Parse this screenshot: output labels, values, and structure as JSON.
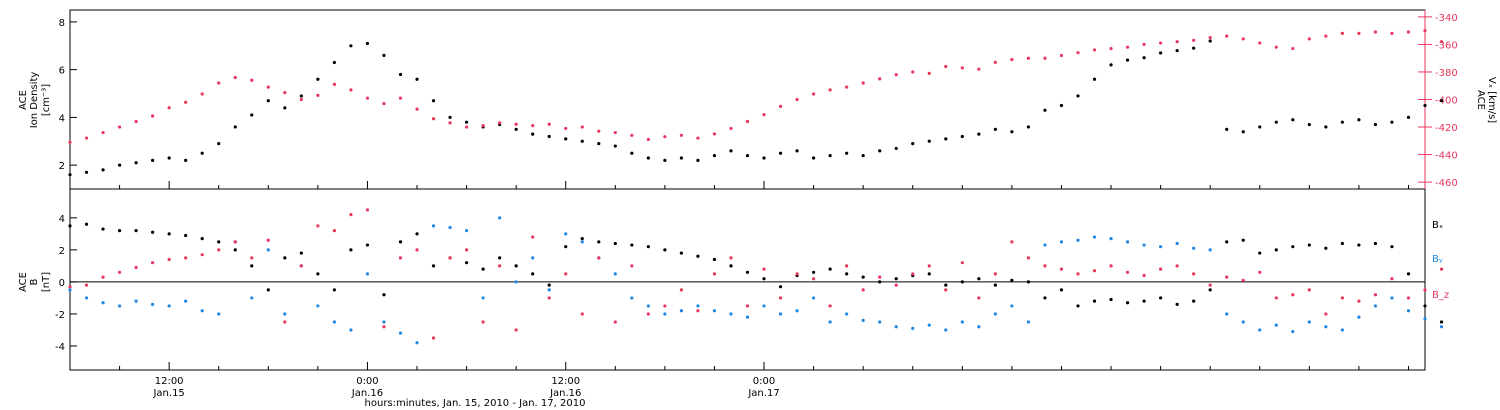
{
  "chart_data": [
    {
      "type": "scatter",
      "panel": "top",
      "ylabel_left": [
        "ACE",
        "Ion Density",
        "[cm⁻³]"
      ],
      "ylabel_right": [
        "ACE",
        "Vₓ [km/s]"
      ],
      "ylim_left": [
        1,
        8.5
      ],
      "yticks_left": [
        2,
        4,
        6,
        8
      ],
      "ylim_right": [
        -465,
        -335
      ],
      "yticks_right": [
        -460,
        -440,
        -420,
        -400,
        -380,
        -360,
        -340
      ],
      "series": [
        {
          "color": "#000000",
          "axis": "left",
          "x": [
            0,
            1,
            2,
            3,
            4,
            5,
            6,
            7,
            8,
            9,
            10,
            11,
            12,
            13,
            14,
            15,
            16,
            17,
            18,
            19,
            20,
            21,
            22,
            23,
            24,
            25,
            26,
            27,
            28,
            29,
            30,
            31,
            32,
            33,
            34,
            35,
            36,
            37,
            38,
            39,
            40,
            41,
            42,
            43,
            44,
            45,
            46,
            47,
            48,
            49,
            50,
            51,
            52,
            53,
            54,
            55,
            56,
            57,
            58,
            59,
            60,
            61,
            62,
            63,
            64,
            65,
            66,
            67,
            68,
            69,
            70,
            71,
            72,
            73,
            74,
            75,
            76,
            77,
            78,
            79,
            80,
            81,
            82,
            83
          ],
          "y": [
            1.6,
            1.7,
            1.8,
            2.0,
            2.1,
            2.2,
            2.3,
            2.2,
            2.5,
            2.9,
            3.6,
            4.1,
            4.7,
            4.4,
            4.9,
            5.6,
            6.3,
            7.0,
            7.1,
            6.6,
            5.8,
            5.6,
            4.7,
            4.0,
            3.8,
            3.6,
            3.7,
            3.5,
            3.3,
            3.2,
            3.1,
            3.0,
            2.9,
            2.8,
            2.5,
            2.3,
            2.2,
            2.3,
            2.2,
            2.4,
            2.6,
            2.4,
            2.3,
            2.5,
            2.6,
            2.3,
            2.4,
            2.5,
            2.4,
            2.6,
            2.7,
            2.9,
            3.0,
            3.1,
            3.2,
            3.3,
            3.5,
            3.4,
            3.6,
            4.3,
            4.5,
            4.9,
            5.6,
            6.2,
            6.4,
            6.5,
            6.7,
            6.8,
            6.9,
            7.2,
            3.5,
            3.4,
            3.6,
            3.8,
            3.9,
            3.7,
            3.6,
            3.8,
            3.9,
            3.7,
            3.8,
            4.0,
            4.5,
            4.7
          ]
        },
        {
          "color": "#e8365e",
          "axis": "right",
          "x": [
            0,
            1,
            2,
            3,
            4,
            5,
            6,
            7,
            8,
            9,
            10,
            11,
            12,
            13,
            14,
            15,
            16,
            17,
            18,
            19,
            20,
            21,
            22,
            23,
            24,
            25,
            26,
            27,
            28,
            29,
            30,
            31,
            32,
            33,
            34,
            35,
            36,
            37,
            38,
            39,
            40,
            41,
            42,
            43,
            44,
            45,
            46,
            47,
            48,
            49,
            50,
            51,
            52,
            53,
            54,
            55,
            56,
            57,
            58,
            59,
            60,
            61,
            62,
            63,
            64,
            65,
            66,
            67,
            68,
            69,
            70,
            71,
            72,
            73,
            74,
            75,
            76,
            77,
            78,
            79,
            80,
            81,
            82,
            83
          ],
          "y": [
            -431,
            -428,
            -424,
            -420,
            -416,
            -412,
            -406,
            -402,
            -396,
            -388,
            -384,
            -386,
            -391,
            -395,
            -400,
            -397,
            -389,
            -393,
            -399,
            -403,
            -399,
            -407,
            -414,
            -417,
            -420,
            -419,
            -417,
            -418,
            -419,
            -418,
            -421,
            -420,
            -423,
            -424,
            -426,
            -429,
            -427,
            -426,
            -428,
            -425,
            -421,
            -416,
            -411,
            -405,
            -400,
            -396,
            -393,
            -391,
            -388,
            -385,
            -382,
            -380,
            -381,
            -376,
            -377,
            -378,
            -373,
            -371,
            -370,
            -370,
            -368,
            -366,
            -364,
            -363,
            -362,
            -360,
            -359,
            -358,
            -357,
            -355,
            -354,
            -356,
            -359,
            -362,
            -363,
            -356,
            -354,
            -352,
            -352,
            -351,
            -352,
            -351,
            -350,
            -358
          ]
        }
      ]
    },
    {
      "type": "scatter",
      "panel": "bottom",
      "ylabel_left": [
        "ACE",
        "B",
        "[nT]"
      ],
      "ylim": [
        -5.5,
        5.8
      ],
      "yticks": [
        -4,
        -2,
        0,
        2,
        4
      ],
      "legend_position": "right",
      "series": [
        {
          "name": "Bₓ",
          "color": "#000000",
          "x": [
            0,
            1,
            2,
            3,
            4,
            5,
            6,
            7,
            8,
            9,
            10,
            11,
            12,
            13,
            14,
            15,
            16,
            17,
            18,
            19,
            20,
            21,
            22,
            23,
            24,
            25,
            26,
            27,
            28,
            29,
            30,
            31,
            32,
            33,
            34,
            35,
            36,
            37,
            38,
            39,
            40,
            41,
            42,
            43,
            44,
            45,
            46,
            47,
            48,
            49,
            50,
            51,
            52,
            53,
            54,
            55,
            56,
            57,
            58,
            59,
            60,
            61,
            62,
            63,
            64,
            65,
            66,
            67,
            68,
            69,
            70,
            71,
            72,
            73,
            74,
            75,
            76,
            77,
            78,
            79,
            80,
            81,
            82,
            83
          ],
          "y": [
            3.5,
            3.6,
            3.3,
            3.2,
            3.2,
            3.1,
            3.0,
            2.9,
            2.7,
            2.5,
            2.0,
            1.0,
            -0.5,
            1.5,
            1.8,
            0.5,
            -0.5,
            2.0,
            2.3,
            -0.8,
            2.5,
            3.0,
            1.0,
            1.5,
            1.2,
            0.8,
            1.5,
            1.0,
            0.5,
            -0.2,
            2.2,
            2.7,
            2.5,
            2.4,
            2.3,
            2.2,
            2.0,
            1.8,
            1.6,
            1.4,
            1.0,
            0.6,
            0.2,
            -0.3,
            0.4,
            0.6,
            0.8,
            0.5,
            0.3,
            0.0,
            0.2,
            0.4,
            0.5,
            -0.2,
            0.0,
            0.2,
            -0.2,
            0.1,
            0.0,
            -1.0,
            -0.5,
            -1.5,
            -1.2,
            -1.1,
            -1.3,
            -1.2,
            -1.0,
            -1.4,
            -1.2,
            -0.5,
            2.5,
            2.6,
            1.8,
            2.0,
            2.2,
            2.3,
            2.1,
            2.4,
            2.3,
            2.4,
            2.2,
            0.5,
            -1.5,
            -2.5
          ]
        },
        {
          "name": "Bᵧ",
          "color": "#1e88e5",
          "x": [
            0,
            1,
            2,
            3,
            4,
            5,
            6,
            7,
            8,
            9,
            10,
            11,
            12,
            13,
            14,
            15,
            16,
            17,
            18,
            19,
            20,
            21,
            22,
            23,
            24,
            25,
            26,
            27,
            28,
            29,
            30,
            31,
            32,
            33,
            34,
            35,
            36,
            37,
            38,
            39,
            40,
            41,
            42,
            43,
            44,
            45,
            46,
            47,
            48,
            49,
            50,
            51,
            52,
            53,
            54,
            55,
            56,
            57,
            58,
            59,
            60,
            61,
            62,
            63,
            64,
            65,
            66,
            67,
            68,
            69,
            70,
            71,
            72,
            73,
            74,
            75,
            76,
            77,
            78,
            79,
            80,
            81,
            82,
            83
          ],
          "y": [
            -0.5,
            -1.0,
            -1.3,
            -1.5,
            -1.2,
            -1.4,
            -1.5,
            -1.2,
            -1.8,
            -2.0,
            2.5,
            -1.0,
            2.0,
            -2.0,
            1.0,
            -1.5,
            -2.5,
            -3.0,
            0.5,
            -2.5,
            -3.2,
            -3.8,
            3.5,
            3.4,
            3.2,
            -1.0,
            4.0,
            0.0,
            1.5,
            -0.5,
            3.0,
            2.5,
            1.5,
            0.5,
            -1.0,
            -1.5,
            -2.0,
            -1.8,
            -1.5,
            -1.8,
            -2.0,
            -2.2,
            -1.5,
            -2.0,
            -1.8,
            -1.0,
            -2.5,
            -2.0,
            -2.4,
            -2.5,
            -2.8,
            -2.9,
            -2.7,
            -3.0,
            -2.5,
            -2.8,
            -2.0,
            -1.5,
            -2.5,
            2.3,
            2.5,
            2.6,
            2.8,
            2.7,
            2.5,
            2.3,
            2.2,
            2.4,
            2.1,
            2.0,
            -2.0,
            -2.5,
            -3.0,
            -2.7,
            -3.1,
            -2.5,
            -2.8,
            -3.0,
            -2.2,
            -1.5,
            -1.0,
            -1.8,
            -2.3,
            -2.8
          ]
        },
        {
          "name": "B_z",
          "color": "#e8365e",
          "x": [
            0,
            1,
            2,
            3,
            4,
            5,
            6,
            7,
            8,
            9,
            10,
            11,
            12,
            13,
            14,
            15,
            16,
            17,
            18,
            19,
            20,
            21,
            22,
            23,
            24,
            25,
            26,
            27,
            28,
            29,
            30,
            31,
            32,
            33,
            34,
            35,
            36,
            37,
            38,
            39,
            40,
            41,
            42,
            43,
            44,
            45,
            46,
            47,
            48,
            49,
            50,
            51,
            52,
            53,
            54,
            55,
            56,
            57,
            58,
            59,
            60,
            61,
            62,
            63,
            64,
            65,
            66,
            67,
            68,
            69,
            70,
            71,
            72,
            73,
            74,
            75,
            76,
            77,
            78,
            79,
            80,
            81,
            82,
            83
          ],
          "y": [
            -0.3,
            -0.2,
            0.3,
            0.6,
            0.9,
            1.2,
            1.4,
            1.5,
            1.7,
            2.0,
            2.5,
            1.5,
            2.6,
            -2.5,
            1.0,
            3.5,
            3.2,
            4.2,
            4.5,
            -2.8,
            1.5,
            2.0,
            -3.5,
            1.5,
            2.0,
            -2.5,
            1.0,
            -3.0,
            2.8,
            -1.0,
            0.5,
            -2.0,
            1.5,
            -2.5,
            1.0,
            -2.0,
            -1.5,
            -0.5,
            -1.8,
            0.5,
            1.5,
            -1.5,
            0.8,
            -1.0,
            0.5,
            0.2,
            -1.5,
            1.0,
            -0.5,
            0.3,
            -0.2,
            0.5,
            1.0,
            -0.5,
            1.2,
            -1.0,
            0.5,
            2.5,
            1.5,
            1.0,
            0.8,
            0.5,
            0.7,
            1.0,
            0.6,
            0.4,
            0.8,
            1.0,
            0.5,
            -0.2,
            0.3,
            0.1,
            0.6,
            -1.0,
            -0.8,
            -0.5,
            -2.0,
            -1.0,
            -1.2,
            -0.8,
            0.2,
            -1.0,
            -0.5,
            0.8
          ]
        }
      ]
    }
  ],
  "xaxis": {
    "label": "hours:minutes, Jan. 15, 2010 - Jan. 17, 2010",
    "x_units": "hours since 06:00 Jan. 15, 2010",
    "xlim": [
      0,
      82
    ],
    "ticks": [
      {
        "x": 6,
        "time": "12:00",
        "date": "Jan.15"
      },
      {
        "x": 18,
        "time": "0:00",
        "date": "Jan.16"
      },
      {
        "x": 30,
        "time": "12:00",
        "date": "Jan.16"
      },
      {
        "x": 42,
        "time": "0:00",
        "date": "Jan.17"
      }
    ]
  }
}
